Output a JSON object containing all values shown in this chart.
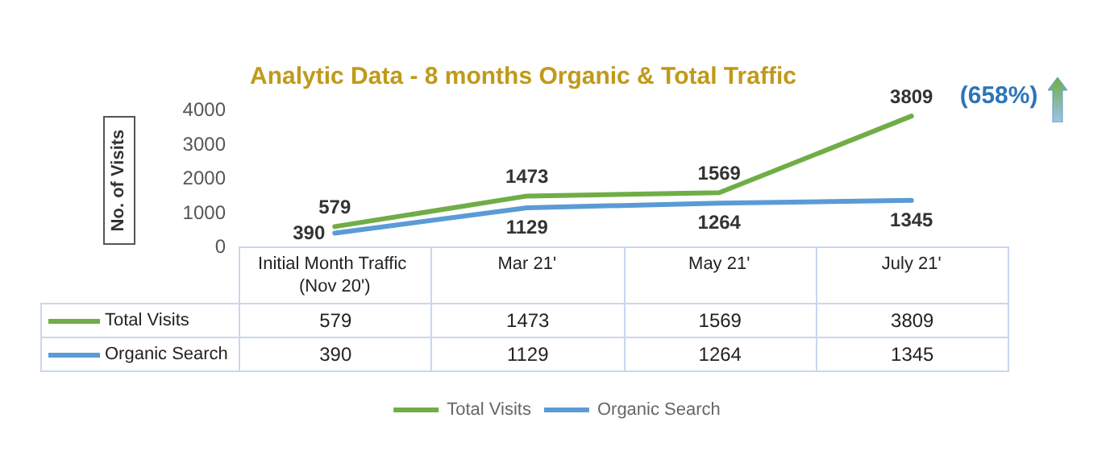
{
  "chart_data": {
    "type": "line",
    "title": "Analytic Data - 8 months Organic & Total Traffic",
    "ylabel": "No. of Visits",
    "categories": [
      "Initial Month Traffic (Nov 20')",
      "Mar 21'",
      "May 21'",
      "July 21'"
    ],
    "series": [
      {
        "name": "Total Visits",
        "color": "#70ad47",
        "values": [
          579,
          1473,
          1569,
          3809
        ],
        "value_labels": [
          "579",
          "1473",
          "1569",
          "3809"
        ]
      },
      {
        "name": "Organic Search",
        "color": "#5b9bd5",
        "values": [
          390,
          1129,
          1264,
          1345
        ],
        "value_labels": [
          "390",
          "1129",
          "1264",
          "1345"
        ]
      }
    ],
    "ylim": [
      0,
      4000
    ],
    "yticks": [
      0,
      1000,
      2000,
      3000,
      4000
    ],
    "grid": false,
    "legend": "bottom",
    "marker": "none",
    "line_style": "solid",
    "data_labels": true,
    "annotations": [
      "(658%)"
    ]
  }
}
